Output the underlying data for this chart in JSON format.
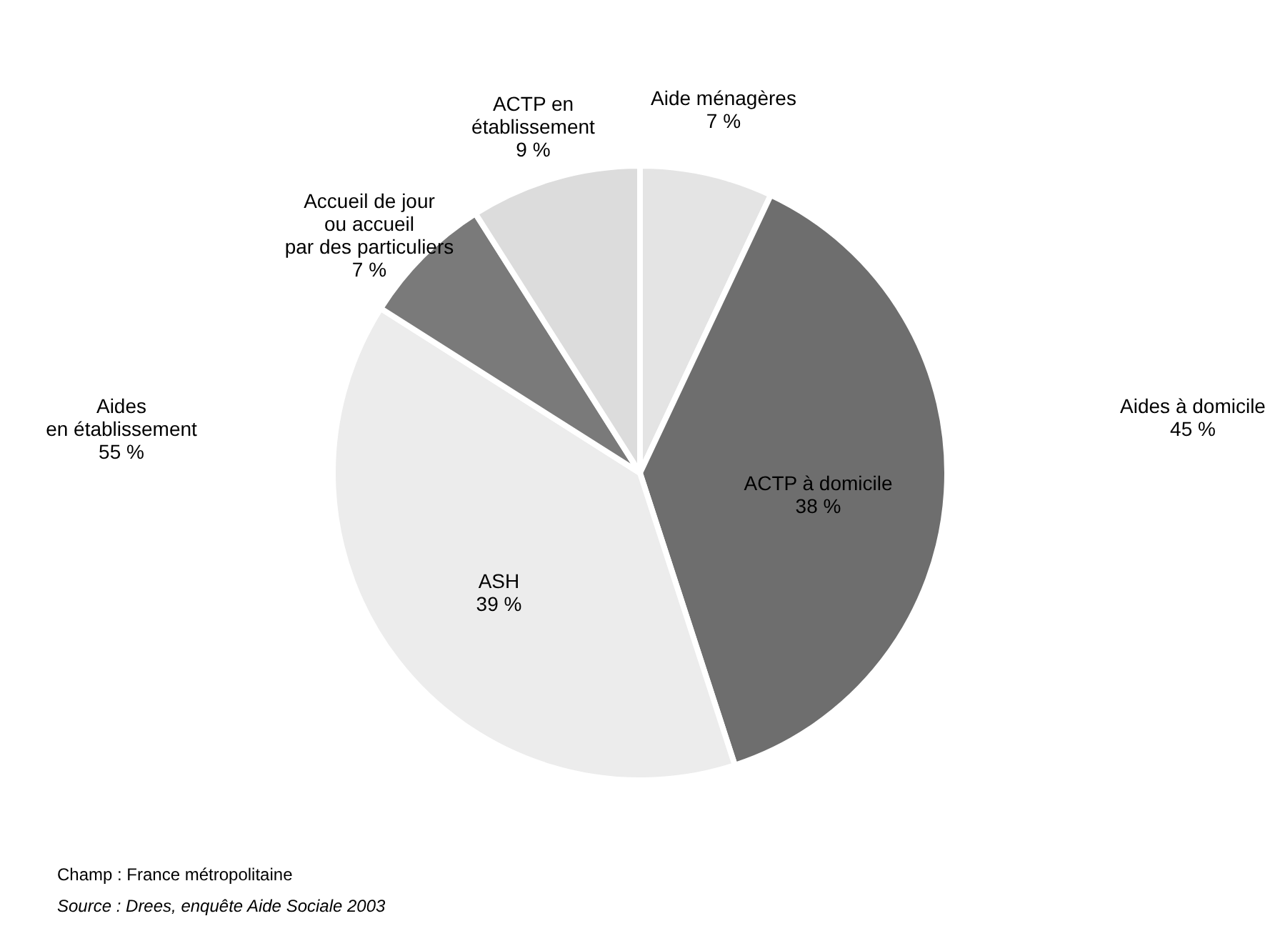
{
  "chart_data": {
    "type": "pie",
    "categories": [
      "Aide ménagères",
      "ACTP à domicile",
      "ASH",
      "Accueil de jour\nou accueil\npar des particuliers",
      "ACTP en\nétablissement"
    ],
    "values": [
      7,
      38,
      39,
      7,
      9
    ],
    "value_labels": [
      "7 %",
      "38 %",
      "39 %",
      "7 %",
      "9 %"
    ],
    "colors": [
      "#e4e4e4",
      "#6e6e6e",
      "#ececec",
      "#7a7a7a",
      "#dcdcdc"
    ],
    "annotations": [
      "Aides\nen établissement\n55 %",
      "Aides à domicile\n45 %",
      "Champ : France métropolitaine",
      "Source : Drees, enquête Aide Sociale 2003"
    ]
  }
}
